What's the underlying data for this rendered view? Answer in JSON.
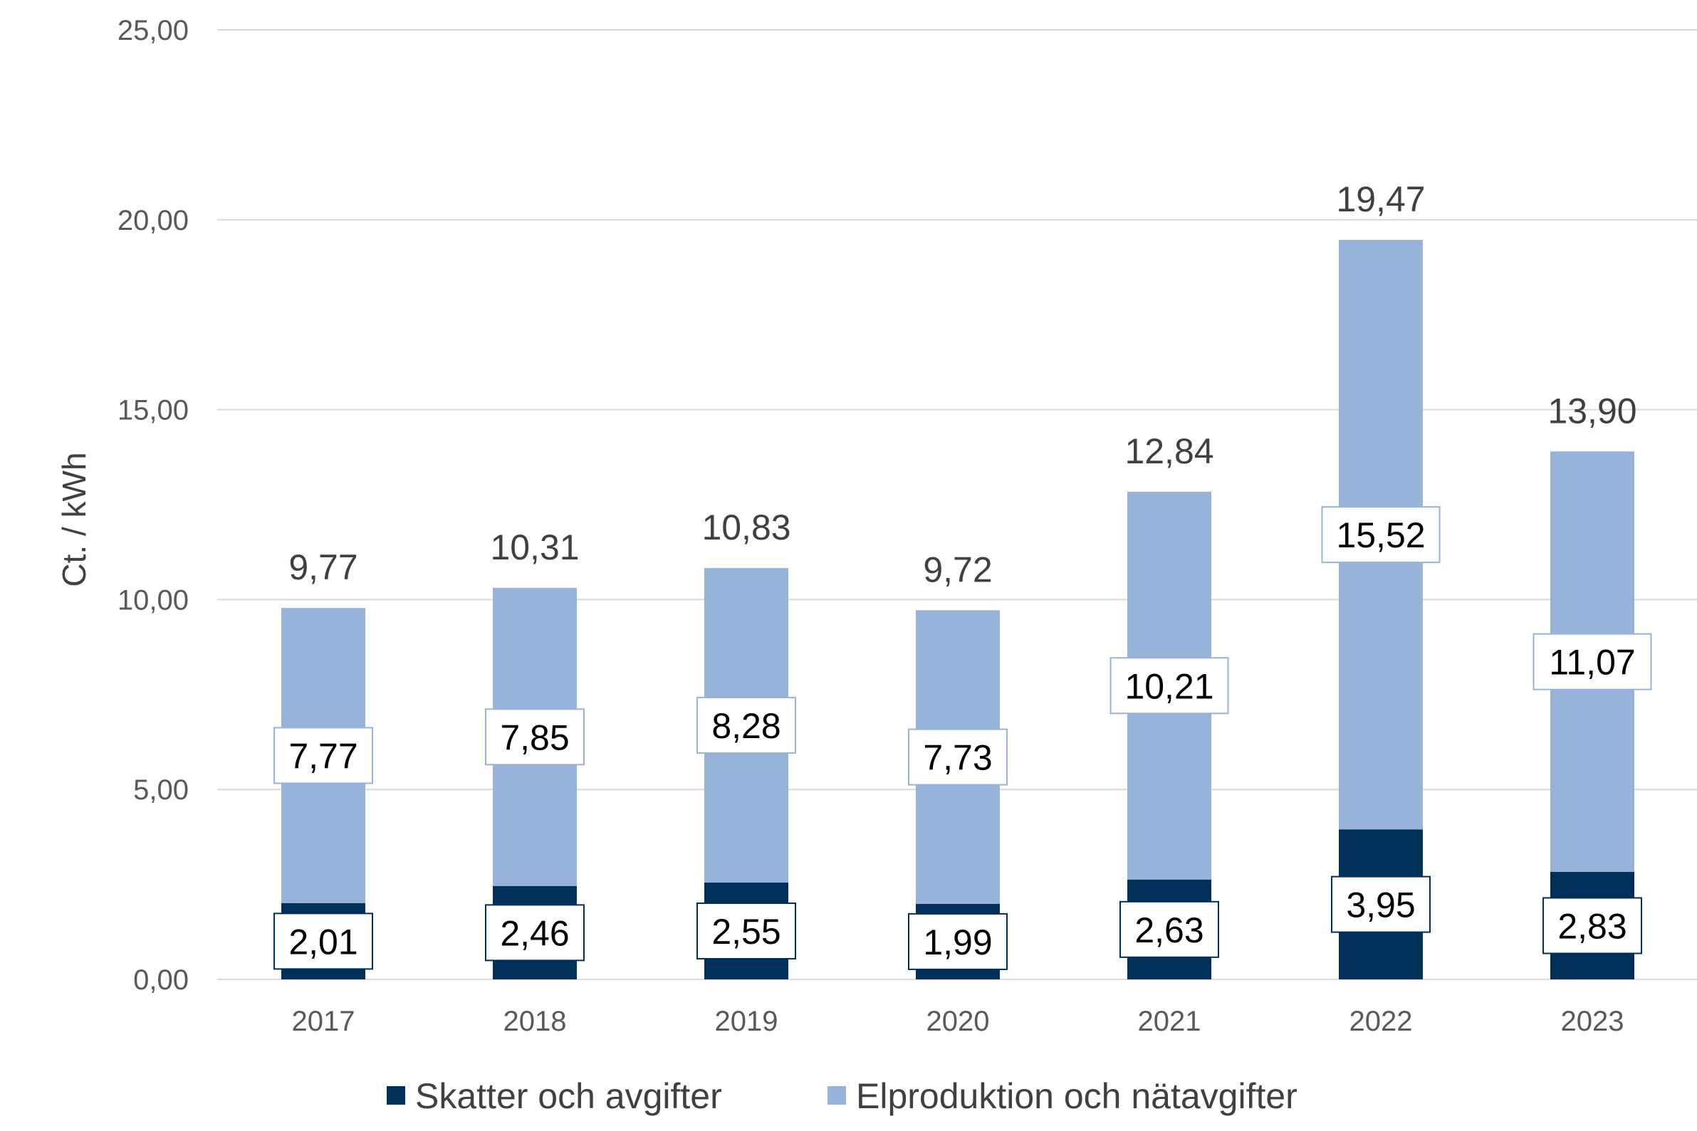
{
  "colors": {
    "tax": "#002f5a",
    "production": "#97b3d9",
    "grid": "#d9d9d9",
    "text": "#404040"
  },
  "chart_data": {
    "type": "bar",
    "stacked": true,
    "categories": [
      "2017",
      "2018",
      "2019",
      "2020",
      "2021",
      "2022",
      "2023"
    ],
    "series": [
      {
        "name": "Skatter och avgifter",
        "values": [
          2.01,
          2.46,
          2.55,
          1.99,
          2.63,
          3.95,
          2.83
        ],
        "labels": [
          "2,01",
          "2,46",
          "2,55",
          "1,99",
          "2,63",
          "3,95",
          "2,83"
        ]
      },
      {
        "name": "Elproduktion och nätavgifter",
        "values": [
          7.77,
          7.85,
          8.28,
          7.73,
          10.21,
          15.52,
          11.07
        ],
        "labels": [
          "7,77",
          "7,85",
          "8,28",
          "7,73",
          "10,21",
          "15,52",
          "11,07"
        ]
      }
    ],
    "totals": [
      9.77,
      10.31,
      10.83,
      9.72,
      12.84,
      19.47,
      13.9
    ],
    "total_labels": [
      "9,77",
      "10,31",
      "10,83",
      "9,72",
      "12,84",
      "19,47",
      "13,90"
    ],
    "ylabel": "Ct. / kWh",
    "xlabel": "",
    "ylim": [
      0,
      25
    ],
    "yticks": [
      0,
      5,
      10,
      15,
      20,
      25
    ],
    "ytick_labels": [
      "0,00",
      "5,00",
      "10,00",
      "15,00",
      "20,00",
      "25,00"
    ],
    "grid": true,
    "legend_position": "bottom"
  }
}
